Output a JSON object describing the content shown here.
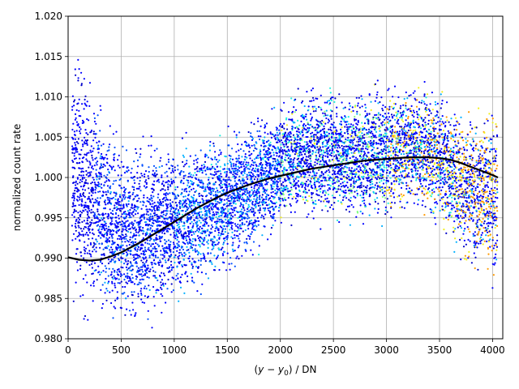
{
  "chart_data": {
    "type": "scatter",
    "title": "",
    "xlabel": "(y − y0) / DN",
    "xlabel_parts": {
      "pre": "(",
      "y1": "y",
      "minus": " − ",
      "y2": "y",
      "sub": "0",
      "post": ") / DN"
    },
    "ylabel": "normalized count rate",
    "xlim": [
      0,
      4096
    ],
    "ylim": [
      0.98,
      1.02
    ],
    "grid": true,
    "x_ticks": [
      0,
      500,
      1000,
      1500,
      2000,
      2500,
      3000,
      3500,
      4000
    ],
    "x_tick_labels": [
      "0",
      "500",
      "1000",
      "1500",
      "2000",
      "2500",
      "3000",
      "3500",
      "4000"
    ],
    "y_ticks": [
      0.98,
      0.985,
      0.99,
      0.995,
      1.0,
      1.005,
      1.01,
      1.015,
      1.02
    ],
    "y_tick_labels": [
      "0.980",
      "0.985",
      "0.990",
      "0.995",
      "1.000",
      "1.005",
      "1.010",
      "1.015",
      "1.020"
    ],
    "colormap": "jet",
    "point_colors": [
      "#0000c8",
      "#0000ff",
      "#0050ff",
      "#00b0ff",
      "#20f0e0",
      "#80ff80",
      "#f0f020",
      "#ff9a00"
    ],
    "fit_color": "#000000",
    "scatter_envelope": {
      "x": [
        50,
        250,
        500,
        750,
        1000,
        1250,
        1500,
        1750,
        1990,
        2060,
        2500,
        3000,
        3250,
        3500,
        3750,
        4000
      ],
      "y_low": [
        0.98,
        0.98,
        0.98,
        0.98,
        0.982,
        0.984,
        0.986,
        0.989,
        0.992,
        0.9935,
        0.993,
        0.993,
        0.9945,
        0.993,
        0.987,
        0.985
      ],
      "y_high": [
        1.02,
        1.013,
        1.006,
        1.0065,
        1.007,
        1.007,
        1.0075,
        1.0095,
        1.0105,
        1.0115,
        1.0125,
        1.013,
        1.0135,
        1.012,
        1.011,
        1.01
      ]
    },
    "fit_curve": {
      "x": [
        0,
        100,
        200,
        300,
        400,
        500,
        600,
        700,
        800,
        900,
        1000,
        1100,
        1200,
        1300,
        1400,
        1500,
        1600,
        1700,
        1800,
        1900,
        2000,
        2100,
        2200,
        2300,
        2400,
        2500,
        2600,
        2700,
        2800,
        2900,
        3000,
        3100,
        3200,
        3300,
        3400,
        3500,
        3600,
        3700,
        3800,
        3900,
        4000,
        4050
      ],
      "y": [
        0.9901,
        0.9898,
        0.9897,
        0.9898,
        0.9902,
        0.9907,
        0.9914,
        0.9921,
        0.9929,
        0.9937,
        0.9945,
        0.9953,
        0.9961,
        0.9968,
        0.9975,
        0.9981,
        0.9986,
        0.9991,
        0.9995,
        0.9999,
        1.0002,
        1.0005,
        1.0008,
        1.0011,
        1.0013,
        1.0015,
        1.0017,
        1.0019,
        1.0021,
        1.0022,
        1.0023,
        1.0024,
        1.0025,
        1.0025,
        1.0025,
        1.0024,
        1.0022,
        1.0018,
        1.0013,
        1.0008,
        1.0003,
        1.0
      ]
    }
  }
}
